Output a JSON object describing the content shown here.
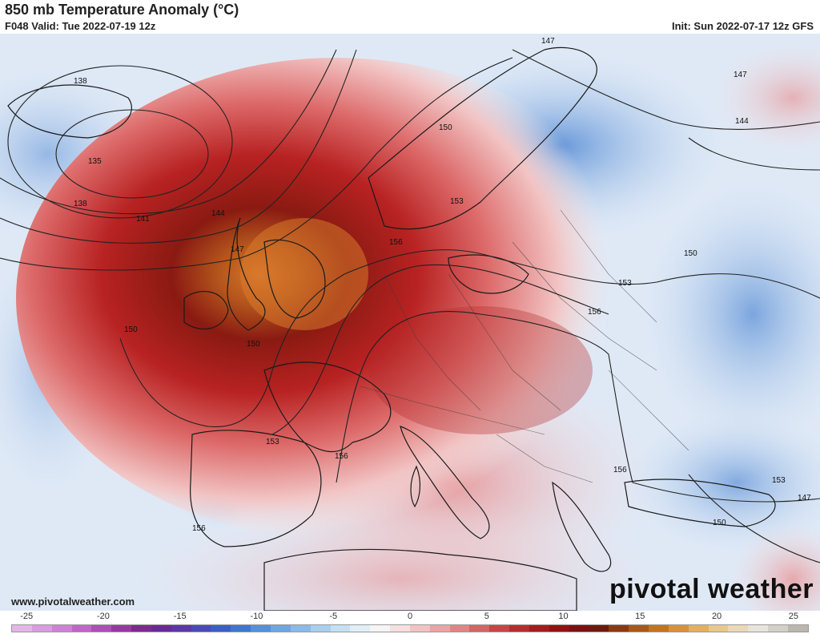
{
  "header": {
    "title": "850 mb Temperature Anomaly (°C)",
    "valid": "F048 Valid: Tue 2022-07-19 12z",
    "init": "Init: Sun 2022-07-17 12z GFS"
  },
  "footer": {
    "website": "www.pivotalweather.com",
    "brand": "pivotal weather"
  },
  "colorbar": {
    "ticks": [
      "-25",
      "-20",
      "-15",
      "-10",
      "-5",
      "0",
      "5",
      "10",
      "15",
      "20",
      "25"
    ],
    "range": [
      -26,
      26
    ],
    "colors": [
      "#e3b6e8",
      "#d89ce0",
      "#cd82d6",
      "#c066c8",
      "#ad4fb6",
      "#963aa1",
      "#7d2b8c",
      "#6a2a96",
      "#5c37a8",
      "#4b49b8",
      "#3c5fc6",
      "#3f77d0",
      "#5590d8",
      "#6ea6e0",
      "#8abbe8",
      "#a8cfee",
      "#c5e0f4",
      "#e0eef8",
      "#f5f5f5",
      "#f7dfdf",
      "#f2c3c3",
      "#eaa4a4",
      "#e08585",
      "#d46565",
      "#c74545",
      "#b72d2d",
      "#a51c1c",
      "#911212",
      "#7d1010",
      "#6e1a0c",
      "#8a3a12",
      "#a85818",
      "#c4741f",
      "#d8923a",
      "#e3b060",
      "#e8c88c",
      "#ead9b8",
      "#e8e4dc",
      "#d4cfc8",
      "#bcb6ae"
    ]
  },
  "map": {
    "contour_labels": [
      "135",
      "138",
      "138",
      "141",
      "144",
      "147",
      "147",
      "147",
      "144",
      "150",
      "150",
      "150",
      "150",
      "150",
      "153",
      "153",
      "153",
      "153",
      "156",
      "156",
      "156",
      "156",
      "156",
      "147"
    ]
  }
}
